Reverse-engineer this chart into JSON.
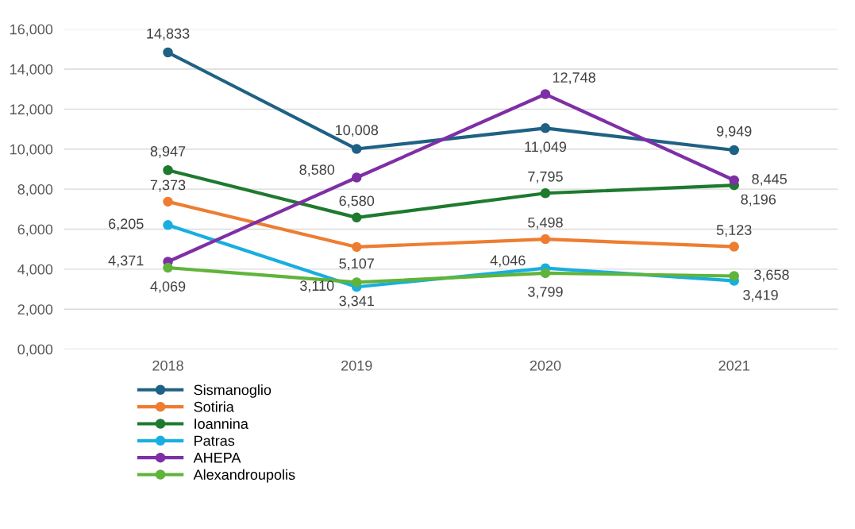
{
  "chart_data": {
    "type": "line",
    "categories": [
      "2018",
      "2019",
      "2020",
      "2021"
    ],
    "series": [
      {
        "name": "Sismanoglio",
        "color": "#1f6184",
        "values": [
          14833,
          10008,
          11049,
          9949
        ],
        "value_labels": [
          "14,833",
          "10,008",
          "11,049",
          "9,949"
        ]
      },
      {
        "name": "Sotiria",
        "color": "#ee7d31",
        "values": [
          7373,
          5107,
          5498,
          5123
        ],
        "value_labels": [
          "7,373",
          "5,107",
          "5,498",
          "5,123"
        ]
      },
      {
        "name": "Ioannina",
        "color": "#1e7a2e",
        "values": [
          8947,
          6580,
          7795,
          8196
        ],
        "value_labels": [
          "8,947",
          "6,580",
          "7,795",
          "8,196"
        ]
      },
      {
        "name": "Patras",
        "color": "#19aee0",
        "values": [
          6205,
          3110,
          4046,
          3419
        ],
        "value_labels": [
          "6,205",
          "3,110",
          "4,046",
          "3,419"
        ]
      },
      {
        "name": "AHEPA",
        "color": "#7e2fa6",
        "values": [
          4371,
          8580,
          12748,
          8445
        ],
        "value_labels": [
          "4,371",
          "8,580",
          "12,748",
          "8,445"
        ]
      },
      {
        "name": "Alexandroupolis",
        "color": "#5fb43a",
        "values": [
          4069,
          3341,
          3799,
          3658
        ],
        "value_labels": [
          "4,069",
          "3,341",
          "3,799",
          "3,658"
        ]
      }
    ],
    "ylim": [
      0,
      16000
    ],
    "yticks": [
      {
        "value": 0,
        "label": "0,000"
      },
      {
        "value": 2000,
        "label": "2,000"
      },
      {
        "value": 4000,
        "label": "4,000"
      },
      {
        "value": 6000,
        "label": "6,000"
      },
      {
        "value": 8000,
        "label": "8,000"
      },
      {
        "value": 10000,
        "label": "10,000"
      },
      {
        "value": 12000,
        "label": "12,000"
      },
      {
        "value": 14000,
        "label": "14,000"
      },
      {
        "value": 16000,
        "label": "16,000"
      }
    ],
    "grid": "y",
    "legend": "bottom left",
    "marker": "circle",
    "line_style": "solid"
  }
}
